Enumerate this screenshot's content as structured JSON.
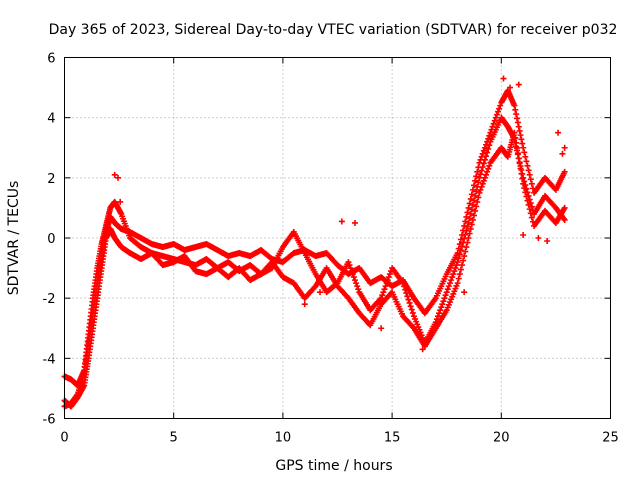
{
  "chart_data": {
    "type": "scatter",
    "title": "Day 365 of 2023, Sidereal Day-to-day VTEC variation (SDTVAR) for receiver p032",
    "xlabel": "GPS time / hours",
    "ylabel": "SDTVAR / TECUs",
    "xlim": [
      0,
      25
    ],
    "ylim": [
      -6,
      6
    ],
    "xticks": [
      0,
      5,
      10,
      15,
      20,
      25
    ],
    "yticks": [
      -6,
      -4,
      -2,
      0,
      2,
      4,
      6
    ],
    "grid": true,
    "marker": "+",
    "series": [
      {
        "name": "SDTVAR",
        "color": "#ff0000",
        "traces": [
          {
            "x": [
              0.0,
              0.3,
              0.6,
              0.9,
              1.1,
              1.3,
              1.5,
              1.7,
              1.9,
              2.1,
              2.3,
              2.6,
              3.0,
              3.5,
              4.0,
              4.5,
              5.0,
              5.5,
              6.0,
              6.5,
              7.0,
              7.5,
              8.0,
              8.5,
              9.0,
              9.5,
              10.0,
              10.5,
              11.0,
              11.5,
              12.0,
              12.5,
              13.0,
              13.5,
              14.0,
              14.5,
              15.0,
              15.5,
              16.0,
              16.5,
              17.0,
              17.5,
              18.0,
              18.5,
              19.0,
              19.5,
              20.0,
              20.3,
              20.6,
              21.0,
              21.5,
              22.0,
              22.5,
              22.9
            ],
            "y": [
              -5.6,
              -5.5,
              -5.2,
              -4.5,
              -3.5,
              -2.5,
              -1.5,
              -0.6,
              0.2,
              0.7,
              0.5,
              0.3,
              0.2,
              0.0,
              -0.2,
              -0.3,
              -0.2,
              -0.4,
              -0.3,
              -0.2,
              -0.4,
              -0.6,
              -0.5,
              -0.6,
              -0.4,
              -0.7,
              -0.8,
              -0.5,
              -0.4,
              -0.6,
              -0.5,
              -0.9,
              -1.2,
              -1.0,
              -1.5,
              -1.3,
              -1.6,
              -1.4,
              -2.0,
              -2.5,
              -2.0,
              -1.2,
              -0.5,
              1.0,
              2.5,
              3.5,
              4.5,
              4.9,
              4.4,
              3.0,
              1.5,
              2.0,
              1.6,
              2.2
            ]
          },
          {
            "x": [
              0.0,
              0.3,
              0.6,
              0.9,
              1.1,
              1.3,
              1.5,
              1.7,
              1.9,
              2.1,
              2.3,
              2.6,
              3.0,
              3.5,
              4.0,
              4.5,
              5.0,
              5.5,
              6.0,
              6.5,
              7.0,
              7.5,
              8.0,
              8.5,
              9.0,
              9.5,
              10.0,
              10.5,
              11.0,
              11.5,
              12.0,
              12.5,
              13.0,
              13.5,
              14.0,
              14.5,
              15.0,
              15.5,
              16.0,
              16.5,
              17.0,
              17.5,
              18.0,
              18.5,
              19.0,
              19.5,
              20.0,
              20.3,
              20.6,
              21.0,
              21.5,
              22.0,
              22.5,
              22.9
            ],
            "y": [
              -4.6,
              -4.7,
              -4.9,
              -4.4,
              -3.2,
              -2.0,
              -1.0,
              -0.2,
              0.4,
              1.0,
              1.2,
              0.8,
              0.0,
              -0.3,
              -0.5,
              -0.6,
              -0.7,
              -0.8,
              -0.9,
              -0.7,
              -1.0,
              -0.8,
              -1.1,
              -0.9,
              -1.2,
              -1.0,
              -0.3,
              0.2,
              -0.5,
              -1.2,
              -1.8,
              -1.5,
              -0.8,
              -1.8,
              -2.4,
              -2.0,
              -1.0,
              -1.5,
              -2.6,
              -3.5,
              -2.8,
              -1.8,
              -0.8,
              0.5,
              2.0,
              3.2,
              4.0,
              3.7,
              3.3,
              2.0,
              0.8,
              1.4,
              1.0,
              0.6
            ]
          },
          {
            "x": [
              0.0,
              0.3,
              0.6,
              0.9,
              1.1,
              1.3,
              1.5,
              1.7,
              1.9,
              2.1,
              2.3,
              2.6,
              3.0,
              3.5,
              4.0,
              4.5,
              5.0,
              5.5,
              6.0,
              6.5,
              7.0,
              7.5,
              8.0,
              8.5,
              9.0,
              9.5,
              10.0,
              10.5,
              11.0,
              11.5,
              12.0,
              12.5,
              13.0,
              13.5,
              14.0,
              14.5,
              15.0,
              15.5,
              16.0,
              16.5,
              17.0,
              17.5,
              18.0,
              18.5,
              19.0,
              19.5,
              20.0,
              20.3,
              20.6,
              21.0,
              21.5,
              22.0,
              22.5,
              22.9
            ],
            "y": [
              -5.4,
              -5.6,
              -5.3,
              -4.9,
              -4.0,
              -3.0,
              -2.0,
              -1.0,
              0.0,
              0.3,
              0.0,
              -0.3,
              -0.5,
              -0.7,
              -0.5,
              -0.9,
              -0.8,
              -0.6,
              -1.1,
              -1.2,
              -1.0,
              -1.3,
              -1.0,
              -1.4,
              -1.2,
              -0.8,
              -1.3,
              -1.5,
              -2.0,
              -1.6,
              -1.0,
              -1.6,
              -2.0,
              -2.5,
              -2.9,
              -2.2,
              -1.8,
              -2.6,
              -3.0,
              -3.6,
              -3.0,
              -2.4,
              -1.5,
              0.0,
              1.5,
              2.5,
              3.0,
              2.7,
              3.5,
              1.8,
              0.4,
              0.9,
              0.5,
              1.0
            ]
          }
        ],
        "points": [
          [
            2.3,
            2.1
          ],
          [
            2.45,
            2.0
          ],
          [
            2.55,
            1.2
          ],
          [
            12.7,
            0.55
          ],
          [
            13.3,
            0.5
          ],
          [
            20.1,
            5.3
          ],
          [
            20.4,
            5.0
          ],
          [
            20.8,
            5.1
          ],
          [
            21.0,
            0.1
          ],
          [
            21.7,
            0.0
          ],
          [
            22.1,
            -0.1
          ],
          [
            22.6,
            3.5
          ],
          [
            22.8,
            2.8
          ],
          [
            22.9,
            3.0
          ],
          [
            18.3,
            -1.8
          ],
          [
            16.4,
            -3.7
          ],
          [
            14.5,
            -3.0
          ],
          [
            11.0,
            -2.2
          ],
          [
            11.7,
            -1.8
          ]
        ]
      }
    ]
  }
}
